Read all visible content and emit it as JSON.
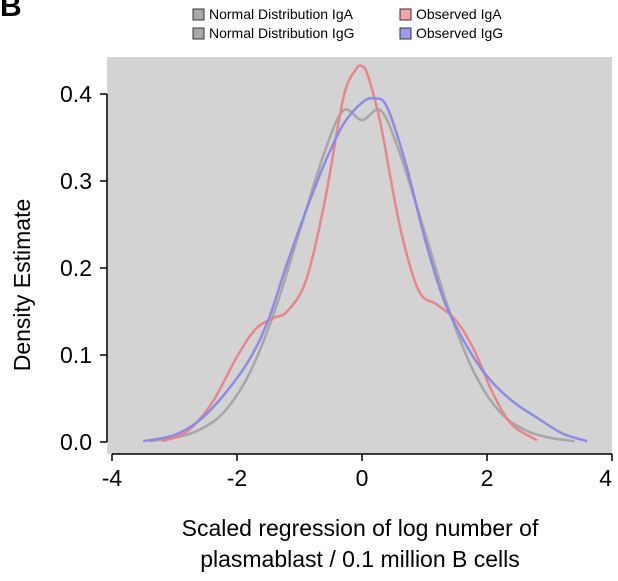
{
  "panel_label": "B",
  "chart_data": {
    "type": "line",
    "title": "",
    "xlabel_lines": [
      "Scaled regression of log number of",
      "plasmablast / 0.1 million B cells"
    ],
    "ylabel": "Density Estimate",
    "xlim": [
      -4,
      4
    ],
    "ylim": [
      0,
      0.44
    ],
    "xticks": [
      -4,
      -2,
      0,
      2,
      4
    ],
    "xtick_labels": [
      "-4",
      "-2",
      "0",
      "2",
      "4"
    ],
    "yticks": [
      0.0,
      0.1,
      0.2,
      0.3,
      0.4
    ],
    "ytick_labels": [
      "0.0",
      "0.1",
      "0.2",
      "0.3",
      "0.4"
    ],
    "grid": false,
    "plot_background": "#d3d3d3",
    "legend_position": "top",
    "series": [
      {
        "name": "Normal Distribution IgA",
        "color": "#a8a8a8",
        "swatch": "#a8a8a8",
        "x": [
          -3.4,
          -3.0,
          -2.6,
          -2.2,
          -1.8,
          -1.4,
          -1.0,
          -0.6,
          -0.3,
          0.0,
          0.3,
          0.6,
          1.0,
          1.4,
          1.8,
          2.2,
          2.6,
          3.0,
          3.4
        ],
        "y": [
          0.001,
          0.005,
          0.014,
          0.035,
          0.079,
          0.15,
          0.242,
          0.333,
          0.381,
          0.37,
          0.381,
          0.333,
          0.242,
          0.15,
          0.079,
          0.035,
          0.014,
          0.005,
          0.001
        ]
      },
      {
        "name": "Normal Distribution IgG",
        "color": "#a8a8a8",
        "swatch": "#a8a8a8",
        "x": [
          -3.4,
          -3.0,
          -2.6,
          -2.2,
          -1.8,
          -1.4,
          -1.0,
          -0.6,
          -0.3,
          0.0,
          0.3,
          0.6,
          1.0,
          1.4,
          1.8,
          2.2,
          2.6,
          3.0,
          3.4
        ],
        "y": [
          0.001,
          0.005,
          0.014,
          0.035,
          0.079,
          0.15,
          0.242,
          0.333,
          0.381,
          0.37,
          0.381,
          0.333,
          0.242,
          0.15,
          0.079,
          0.035,
          0.014,
          0.005,
          0.001
        ]
      },
      {
        "name": "Observed IgA",
        "color": "#e8828a",
        "swatch": "#f4a6a6",
        "x": [
          -3.2,
          -2.8,
          -2.4,
          -2.0,
          -1.7,
          -1.4,
          -1.2,
          -0.9,
          -0.6,
          -0.3,
          -0.1,
          0.0,
          0.1,
          0.3,
          0.6,
          0.9,
          1.2,
          1.5,
          1.8,
          2.1,
          2.4,
          2.8
        ],
        "y": [
          0.001,
          0.012,
          0.045,
          0.098,
          0.13,
          0.143,
          0.15,
          0.185,
          0.275,
          0.395,
          0.428,
          0.432,
          0.42,
          0.365,
          0.25,
          0.175,
          0.158,
          0.14,
          0.105,
          0.055,
          0.02,
          0.002
        ]
      },
      {
        "name": "Observed IgG",
        "color": "#8888e6",
        "swatch": "#9c9cf0",
        "x": [
          -3.5,
          -3.0,
          -2.6,
          -2.2,
          -1.8,
          -1.5,
          -1.2,
          -0.9,
          -0.6,
          -0.3,
          0.0,
          0.2,
          0.4,
          0.7,
          1.0,
          1.3,
          1.6,
          1.9,
          2.2,
          2.5,
          2.8,
          3.2,
          3.6
        ],
        "y": [
          0.001,
          0.008,
          0.025,
          0.055,
          0.095,
          0.14,
          0.205,
          0.265,
          0.32,
          0.365,
          0.39,
          0.395,
          0.385,
          0.32,
          0.235,
          0.165,
          0.12,
          0.085,
          0.06,
          0.042,
          0.028,
          0.01,
          0.001
        ]
      }
    ]
  }
}
